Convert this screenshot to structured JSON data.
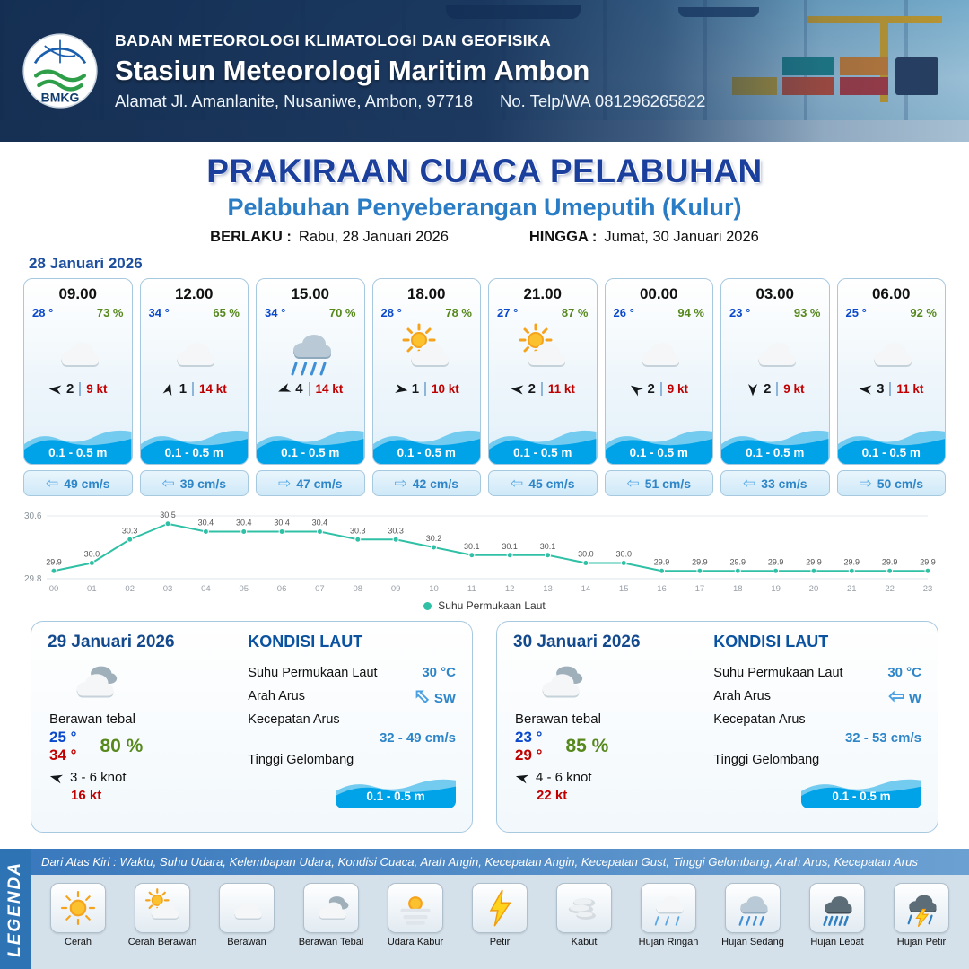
{
  "header": {
    "logo_text": "BMKG",
    "org": "BADAN METEOROLOGI KLIMATOLOGI DAN GEOFISIKA",
    "station": "Stasiun Meteorologi Maritim Ambon",
    "address": "Alamat Jl. Amanlanite, Nusaniwe, Ambon, 97718",
    "phone": "No. Telp/WA  081296265822"
  },
  "title": {
    "main": "PRAKIRAAN CUACA PELABUHAN",
    "subtitle": "Pelabuhan Penyeberangan Umeputih (Kulur)",
    "valid_from_label": "BERLAKU :",
    "valid_from": "Rabu, 28 Januari 2026",
    "valid_to_label": "HINGGA :",
    "valid_to": "Jumat, 30 Januari 2026"
  },
  "forecast_date": "28 Januari 2026",
  "hourly": [
    {
      "time": "09.00",
      "temp": "28 °",
      "rh": "73 %",
      "icon": "cloud",
      "wind_dir_deg": 185,
      "wind_bft": "2",
      "wind_kt": "9 kt",
      "wave": "0.1 - 0.5 m",
      "current_arrow": "⇦",
      "current": "49 cm/s"
    },
    {
      "time": "12.00",
      "temp": "34 °",
      "rh": "65 %",
      "icon": "cloud",
      "wind_dir_deg": 285,
      "wind_bft": "1",
      "wind_kt": "14 kt",
      "wave": "0.1 - 0.5 m",
      "current_arrow": "⇦",
      "current": "39 cm/s"
    },
    {
      "time": "15.00",
      "temp": "34 °",
      "rh": "70 %",
      "icon": "rain-mod",
      "wind_dir_deg": 160,
      "wind_bft": "4",
      "wind_kt": "14 kt",
      "wave": "0.1 - 0.5 m",
      "current_arrow": "⇨",
      "current": "47 cm/s"
    },
    {
      "time": "18.00",
      "temp": "28 °",
      "rh": "78 %",
      "icon": "sun-cloud",
      "wind_dir_deg": 10,
      "wind_bft": "1",
      "wind_kt": "10 kt",
      "wave": "0.1 - 0.5 m",
      "current_arrow": "⇨",
      "current": "42 cm/s"
    },
    {
      "time": "21.00",
      "temp": "27 °",
      "rh": "87 %",
      "icon": "sun-cloud",
      "wind_dir_deg": 185,
      "wind_bft": "2",
      "wind_kt": "11 kt",
      "wave": "0.1 - 0.5 m",
      "current_arrow": "⇦",
      "current": "45 cm/s"
    },
    {
      "time": "00.00",
      "temp": "26 °",
      "rh": "94 %",
      "icon": "cloud",
      "wind_dir_deg": 215,
      "wind_bft": "2",
      "wind_kt": "9 kt",
      "wave": "0.1 - 0.5 m",
      "current_arrow": "⇦",
      "current": "51 cm/s"
    },
    {
      "time": "03.00",
      "temp": "23 °",
      "rh": "93 %",
      "icon": "cloud",
      "wind_dir_deg": 90,
      "wind_bft": "2",
      "wind_kt": "9 kt",
      "wave": "0.1 - 0.5 m",
      "current_arrow": "⇦",
      "current": "33 cm/s"
    },
    {
      "time": "06.00",
      "temp": "25 °",
      "rh": "92 %",
      "icon": "cloud",
      "wind_dir_deg": 185,
      "wind_bft": "3",
      "wind_kt": "11 kt",
      "wave": "0.1 - 0.5 m",
      "current_arrow": "⇨",
      "current": "50 cm/s"
    }
  ],
  "chart_data": {
    "type": "line",
    "x": [
      "00",
      "01",
      "02",
      "03",
      "04",
      "05",
      "06",
      "07",
      "08",
      "09",
      "10",
      "11",
      "12",
      "13",
      "14",
      "15",
      "16",
      "17",
      "18",
      "19",
      "20",
      "21",
      "22",
      "23"
    ],
    "values": [
      29.9,
      30.0,
      30.3,
      30.5,
      30.4,
      30.4,
      30.4,
      30.4,
      30.3,
      30.3,
      30.2,
      30.1,
      30.1,
      30.1,
      30.0,
      30.0,
      29.9,
      29.9,
      29.9,
      29.9,
      29.9,
      29.9,
      29.9,
      29.9
    ],
    "ylim": [
      29.8,
      30.6
    ],
    "legend": "Suhu Permukaan Laut",
    "line_color": "#2fc0a5",
    "xlabel": "",
    "ylabel": ""
  },
  "daily": [
    {
      "date": "29 Januari 2026",
      "icon": "clouds",
      "condition": "Berawan tebal",
      "temp_min": "25 °",
      "temp_max": "34 °",
      "rh": "80 %",
      "wind": "3  - 6 knot",
      "wind_dir_deg": 195,
      "gust": "16 kt",
      "sea": {
        "title": "KONDISI LAUT",
        "sst_label": "Suhu Permukaan Laut",
        "sst": "30 °C",
        "current_dir_label": "Arah Arus",
        "current_dir": "SW",
        "arrow_glyph": "⇦",
        "current_speed_label": "Kecepatan Arus",
        "current_speed": "32 - 49 cm/s",
        "wave_label": "Tinggi Gelombang",
        "wave": "0.1 - 0.5 m"
      }
    },
    {
      "date": "30 Januari 2026",
      "icon": "clouds",
      "condition": "Berawan tebal",
      "temp_min": "23 °",
      "temp_max": "29 °",
      "rh": "85 %",
      "wind": "4  - 6 knot",
      "wind_dir_deg": 195,
      "gust": "22 kt",
      "sea": {
        "title": "KONDISI LAUT",
        "sst_label": "Suhu Permukaan Laut",
        "sst": "30 °C",
        "current_dir_label": "Arah Arus",
        "current_dir": "W",
        "arrow_glyph": "⇦",
        "current_speed_label": "Kecepatan Arus",
        "current_speed": "32 - 53 cm/s",
        "wave_label": "Tinggi Gelombang",
        "wave": "0.1 - 0.5 m"
      }
    }
  ],
  "legend": {
    "vertical_label": "LEGENDA",
    "description": "Dari Atas Kiri : Waktu, Suhu Udara, Kelembapan Udara, Kondisi Cuaca, Arah Angin, Kecepatan Angin, Kecepatan Gust, Tinggi Gelombang, Arah Arus, Kecepatan Arus",
    "items": [
      {
        "label": "Cerah",
        "icon": "sun"
      },
      {
        "label": "Cerah Berawan",
        "icon": "sun-cloud"
      },
      {
        "label": "Berawan",
        "icon": "cloud"
      },
      {
        "label": "Berawan Tebal",
        "icon": "clouds"
      },
      {
        "label": "Udara Kabur",
        "icon": "haze"
      },
      {
        "label": "Petir",
        "icon": "lightning"
      },
      {
        "label": "Kabut",
        "icon": "fog"
      },
      {
        "label": "Hujan Ringan",
        "icon": "rain-light"
      },
      {
        "label": "Hujan Sedang",
        "icon": "rain-mod"
      },
      {
        "label": "Hujan Lebat",
        "icon": "rain-heavy"
      },
      {
        "label": "Hujan Petir",
        "icon": "storm"
      }
    ]
  }
}
